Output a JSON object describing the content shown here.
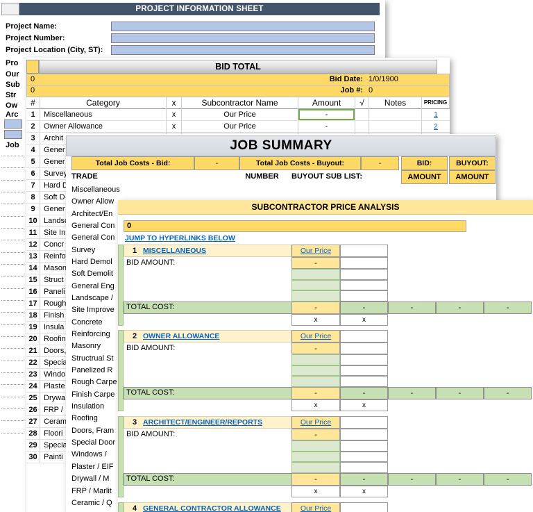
{
  "colors": {
    "header_dark_blue": "#44546A",
    "input_blue": "#B4C6E7",
    "gold": "#FFD966",
    "gold_light": "#FFE699",
    "cream": "#FFF2CC",
    "green": "#C6E0B4",
    "green_light": "#DCE9D0",
    "link_blue": "#0563C1",
    "summary_gray": "#D9DDE3",
    "highlight_green_border": "#70AD47"
  },
  "project_sheet": {
    "title": "PROJECT INFORMATION SHEET",
    "fields": [
      {
        "label": "Project Name:"
      },
      {
        "label": "Project Number:"
      },
      {
        "label": "Project Location (City, ST):"
      }
    ],
    "clipped_rows": [
      "Pro",
      "Our",
      "Sub",
      "Str",
      "Ow",
      "Arc",
      "Job"
    ]
  },
  "bid_total": {
    "title": "BID TOTAL",
    "info_rows": [
      {
        "left_value": "0",
        "label": "Bid Date:",
        "value": "1/0/1900"
      },
      {
        "left_value": "0",
        "label": "Job #:",
        "value": "0"
      }
    ],
    "columns": [
      "#",
      "Category",
      "x",
      "Subcontractor Name",
      "Amount",
      "√",
      "Notes",
      "PRICING"
    ],
    "rows": [
      {
        "num": "1",
        "category": "Miscellaneous",
        "x": "x",
        "subcontractor": "Our Price",
        "amount": "-",
        "pricing": "1",
        "amount_highlight": true
      },
      {
        "num": "2",
        "category": "Owner Allowance",
        "x": "x",
        "subcontractor": "Our Price",
        "amount": "-",
        "pricing": "2"
      },
      {
        "num": "3",
        "category": "Archit"
      },
      {
        "num": "4",
        "category": "Gener"
      },
      {
        "num": "5",
        "category": "Gener"
      },
      {
        "num": "6",
        "category": "Survey"
      },
      {
        "num": "7",
        "category": "Hard D"
      },
      {
        "num": "8",
        "category": "Soft D"
      },
      {
        "num": "9",
        "category": "Gener"
      },
      {
        "num": "10",
        "category": "Landsc"
      },
      {
        "num": "11",
        "category": "Site In"
      },
      {
        "num": "12",
        "category": "Concr"
      },
      {
        "num": "13",
        "category": "Reinfo"
      },
      {
        "num": "14",
        "category": "Mason"
      },
      {
        "num": "15",
        "category": "Struct"
      },
      {
        "num": "16",
        "category": "Paneli"
      },
      {
        "num": "17",
        "category": "Rough"
      },
      {
        "num": "18",
        "category": "Finish"
      },
      {
        "num": "19",
        "category": "Insula"
      },
      {
        "num": "20",
        "category": "Roofin"
      },
      {
        "num": "21",
        "category": "Doors,"
      },
      {
        "num": "22",
        "category": "Specia"
      },
      {
        "num": "23",
        "category": "Windo"
      },
      {
        "num": "24",
        "category": "Plaste"
      },
      {
        "num": "25",
        "category": "Drywa"
      },
      {
        "num": "26",
        "category": "FRP /"
      },
      {
        "num": "27",
        "category": "Ceram"
      },
      {
        "num": "28",
        "category": "Floori"
      },
      {
        "num": "29",
        "category": "Specia"
      },
      {
        "num": "30",
        "category": "Painti"
      }
    ]
  },
  "job_summary": {
    "title": "JOB SUMMARY",
    "totals_row": {
      "bid_label": "Total Job Costs - Bid:",
      "bid_value": "-",
      "buyout_label": "Total Job Costs - Buyout:",
      "buyout_value": "-",
      "bid_col": "BID:",
      "buyout_col": "BUYOUT:"
    },
    "header_row": {
      "trade": "TRADE",
      "number": "NUMBER",
      "buyout_list": "BUYOUT SUB LIST:",
      "amount1": "AMOUNT",
      "amount2": "AMOUNT"
    },
    "trades": [
      "Miscellaneous",
      "Owner Allow",
      "Architect/En",
      "General Con",
      "General Con",
      "Survey",
      "Hard Demol",
      "Soft Demolit",
      "General Eng",
      "Landscape /",
      "Site Improve",
      "Concrete",
      "Reinforcing",
      "Masonry",
      "Structrual St",
      "Panelized R",
      "Rough Carpe",
      "Finish Carpe",
      "Insulation",
      "Roofing",
      "Doors, Fram",
      "Special Door",
      "Windows /",
      "Plaster / EIF",
      "Drywall / M",
      "FRP / Marlit",
      "Ceramic / Q"
    ]
  },
  "sub_analysis": {
    "title": "SUBCONTRACTOR PRICE ANALYSIS",
    "zero_value": "0",
    "jump_link": "JUMP TO HYPERLINKS BELOW",
    "our_price": "Our Price",
    "bid_amount_label": "BID AMOUNT:",
    "total_cost_label": "TOTAL COST:",
    "dash": "-",
    "x_mark": "x",
    "sections": [
      {
        "num": "1",
        "name": "MISCELLANEOUS"
      },
      {
        "num": "2",
        "name": "OWNER ALLOWANCE"
      },
      {
        "num": "3",
        "name": "ARCHITECT/ENGINEER/REPORTS"
      },
      {
        "num": "4",
        "name": "GENERAL CONTRACTOR ALLOWANCE",
        "header_only": true
      }
    ]
  }
}
